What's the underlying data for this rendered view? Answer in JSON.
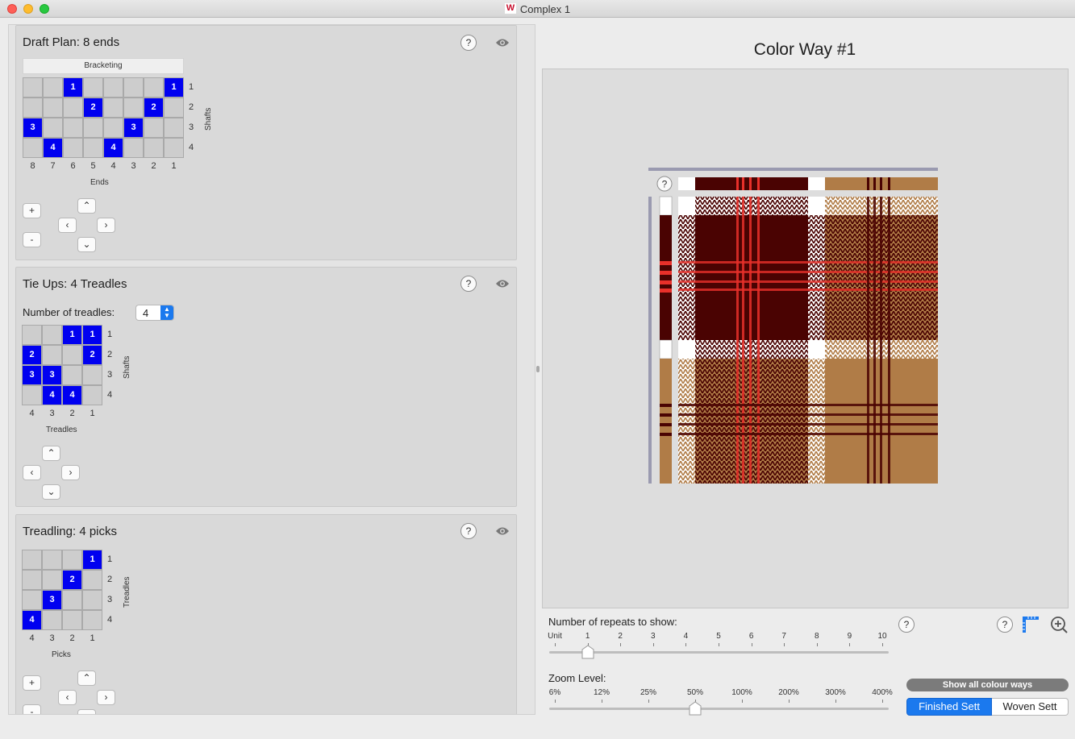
{
  "window": {
    "title": "Complex 1",
    "logo": "W"
  },
  "draft": {
    "title": "Draft Plan:  8 ends",
    "bracket_label": "Bracketing",
    "ends_label": "Ends",
    "shafts_label": "Shafts",
    "columns": [
      "8",
      "7",
      "6",
      "5",
      "4",
      "3",
      "2",
      "1"
    ],
    "rows": [
      "1",
      "2",
      "3",
      "4"
    ],
    "cells": [
      {
        "c": 2,
        "r": 0,
        "v": "1"
      },
      {
        "c": 7,
        "r": 0,
        "v": "1"
      },
      {
        "c": 3,
        "r": 1,
        "v": "2"
      },
      {
        "c": 6,
        "r": 1,
        "v": "2"
      },
      {
        "c": 0,
        "r": 2,
        "v": "3"
      },
      {
        "c": 5,
        "r": 2,
        "v": "3"
      },
      {
        "c": 1,
        "r": 3,
        "v": "4"
      },
      {
        "c": 4,
        "r": 3,
        "v": "4"
      }
    ],
    "plus": "+",
    "minus": "-"
  },
  "tieups": {
    "title": "Tie Ups: 4 Treadles",
    "treadles_label": "Number of treadles:",
    "treadles_value": "4",
    "cols_label": "Treadles",
    "shafts_label": "Shafts",
    "columns": [
      "4",
      "3",
      "2",
      "1"
    ],
    "rows": [
      "1",
      "2",
      "3",
      "4"
    ],
    "cells": [
      {
        "c": 2,
        "r": 0,
        "v": "1"
      },
      {
        "c": 3,
        "r": 0,
        "v": "1"
      },
      {
        "c": 0,
        "r": 1,
        "v": "2"
      },
      {
        "c": 3,
        "r": 1,
        "v": "2"
      },
      {
        "c": 0,
        "r": 2,
        "v": "3"
      },
      {
        "c": 1,
        "r": 2,
        "v": "3"
      },
      {
        "c": 1,
        "r": 3,
        "v": "4"
      },
      {
        "c": 2,
        "r": 3,
        "v": "4"
      }
    ]
  },
  "treadling": {
    "title": "Treadling:  4 picks",
    "cols_label": "Picks",
    "rows_label": "Treadles",
    "columns": [
      "4",
      "3",
      "2",
      "1"
    ],
    "rows": [
      "1",
      "2",
      "3",
      "4"
    ],
    "cells": [
      {
        "c": 3,
        "r": 0,
        "v": "1"
      },
      {
        "c": 2,
        "r": 1,
        "v": "2"
      },
      {
        "c": 1,
        "r": 2,
        "v": "3"
      },
      {
        "c": 0,
        "r": 3,
        "v": "4"
      }
    ],
    "plus": "+",
    "minus": "-"
  },
  "colorway": {
    "title": "Color Way #1",
    "colors": {
      "dark": "#4a0302",
      "red": "#e8302a",
      "tan": "#b07c47",
      "white": "#ffffff"
    }
  },
  "repeats": {
    "label": "Number of repeats to show:",
    "ticks": [
      "Unit",
      "1",
      "2",
      "3",
      "4",
      "5",
      "6",
      "7",
      "8",
      "9",
      "10"
    ],
    "selected": "1"
  },
  "zoom": {
    "label": "Zoom Level:",
    "ticks": [
      "6%",
      "12%",
      "25%",
      "50%",
      "100%",
      "200%",
      "300%",
      "400%"
    ],
    "selected": "50%"
  },
  "help_glyph": "?",
  "show_all_label": "Show all colour ways",
  "finished_sett_label": "Finished Sett",
  "woven_sett_label": "Woven Sett"
}
